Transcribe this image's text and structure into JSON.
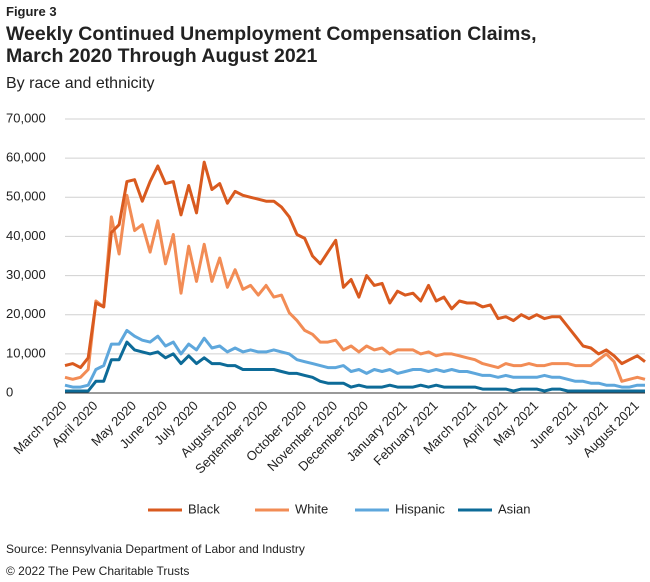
{
  "chart_data": {
    "type": "line",
    "figure_label": "Figure 3",
    "title": [
      "Weekly Continued Unemployment Compensation Claims,",
      "March 2020 Through August 2021"
    ],
    "subtitle": "By race and ethnicity",
    "source": "Source: Pennsylvania Department of Labor and Industry",
    "copyright": "© 2022 The Pew Charitable Trusts",
    "categories": [
      "March 2020",
      null,
      null,
      null,
      "April 2020",
      null,
      null,
      null,
      null,
      "May 2020",
      null,
      null,
      null,
      "June 2020",
      null,
      null,
      null,
      "July 2020",
      null,
      null,
      null,
      null,
      "August 2020",
      null,
      null,
      null,
      "September 2020",
      null,
      null,
      null,
      null,
      "October 2020",
      null,
      null,
      null,
      "November 2020",
      null,
      null,
      null,
      "December 2020",
      null,
      null,
      null,
      null,
      "January 2021",
      null,
      null,
      null,
      "February 2021",
      null,
      null,
      null,
      null,
      "March 2021",
      null,
      null,
      null,
      "April 2021",
      null,
      null,
      null,
      "May 2021",
      null,
      null,
      null,
      null,
      "June 2021",
      null,
      null,
      null,
      "July 2021",
      null,
      null,
      null,
      "August 2021",
      null
    ],
    "series": [
      {
        "name": "Black",
        "color": "#d95a1f",
        "values": [
          7000,
          7500,
          6500,
          9000,
          23000,
          22000,
          41000,
          43000,
          54000,
          54500,
          49000,
          54000,
          58000,
          53500,
          54000,
          45500,
          53000,
          46000,
          59000,
          52000,
          53500,
          48500,
          51500,
          50500,
          50000,
          49500,
          49000,
          49000,
          47500,
          45000,
          40500,
          39500,
          35000,
          33000,
          36000,
          39000,
          27000,
          29000,
          24500,
          30000,
          27500,
          28000,
          23000,
          26000,
          25000,
          25500,
          23500,
          27500,
          23500,
          24500,
          21500,
          23500,
          23000,
          23000,
          22000,
          22500,
          19000,
          19500,
          18500,
          20000,
          19000,
          20000,
          19000,
          19500,
          19500,
          17000,
          14500,
          12000,
          11500,
          10000,
          11000,
          9500,
          7500,
          8500,
          9500,
          8000
        ]
      },
      {
        "name": "White",
        "color": "#f28c55",
        "values": [
          4000,
          3500,
          4000,
          6000,
          23500,
          22000,
          45000,
          35500,
          50500,
          41500,
          43000,
          36000,
          44000,
          33000,
          40500,
          25500,
          37500,
          28500,
          38000,
          28500,
          34500,
          27000,
          31500,
          26500,
          27500,
          25000,
          27500,
          24500,
          25000,
          20500,
          18500,
          16000,
          15000,
          13000,
          13000,
          13500,
          11000,
          12000,
          10500,
          12000,
          11000,
          11500,
          10000,
          11000,
          11000,
          11000,
          10000,
          10500,
          9500,
          10000,
          10000,
          9500,
          9000,
          8500,
          7500,
          7000,
          6500,
          7500,
          7000,
          7000,
          7500,
          7000,
          7000,
          7500,
          7500,
          7500,
          7000,
          7000,
          7000,
          8500,
          10000,
          8000,
          3000,
          3500,
          4000,
          3500
        ]
      },
      {
        "name": "Hispanic",
        "color": "#5ea7dc",
        "values": [
          2000,
          1500,
          1500,
          2000,
          6000,
          7000,
          12500,
          12500,
          16000,
          14500,
          13500,
          13000,
          14500,
          12000,
          13000,
          10000,
          12500,
          11000,
          14000,
          11500,
          12000,
          10500,
          11500,
          10500,
          11000,
          10500,
          10500,
          11000,
          10500,
          10000,
          8500,
          8000,
          7500,
          7000,
          6500,
          6500,
          7000,
          5500,
          6000,
          5000,
          6000,
          5500,
          6000,
          5000,
          5500,
          6000,
          6000,
          5500,
          6000,
          5500,
          6000,
          5500,
          5500,
          5000,
          4500,
          4500,
          4000,
          4500,
          4000,
          4000,
          4000,
          4000,
          4500,
          4000,
          4000,
          3500,
          3000,
          3000,
          2500,
          2500,
          2000,
          2000,
          1500,
          1500,
          2000,
          2000
        ]
      },
      {
        "name": "Asian",
        "color": "#0d6b98",
        "values": [
          500,
          500,
          500,
          500,
          3000,
          3000,
          8500,
          8500,
          13000,
          11000,
          10500,
          10000,
          10500,
          9000,
          10000,
          7500,
          9500,
          7500,
          9000,
          7500,
          7500,
          7000,
          7000,
          6000,
          6000,
          6000,
          6000,
          6000,
          5500,
          5000,
          5000,
          4500,
          4000,
          3000,
          2500,
          2500,
          2500,
          1500,
          2000,
          1500,
          1500,
          1500,
          2000,
          1500,
          1500,
          1500,
          2000,
          1500,
          2000,
          1500,
          1500,
          1500,
          1500,
          1500,
          1000,
          1000,
          1000,
          1000,
          500,
          1000,
          1000,
          1000,
          500,
          1000,
          1000,
          500,
          500,
          500,
          500,
          500,
          500,
          500,
          500,
          500,
          500,
          500
        ]
      }
    ],
    "ylim": [
      0,
      70000
    ],
    "yticks": [
      0,
      {
        "value": 10000,
        "label": "10,000"
      },
      {
        "value": 20000,
        "label": "20,000"
      },
      {
        "value": 30000,
        "label": "30,000"
      },
      {
        "value": 40000,
        "label": "40,000"
      },
      {
        "value": 50000,
        "label": "50,000"
      },
      {
        "value": 60000,
        "label": "60,000"
      },
      {
        "value": 70000,
        "label": "70,000"
      }
    ],
    "grid": true,
    "legend": "bottom"
  }
}
